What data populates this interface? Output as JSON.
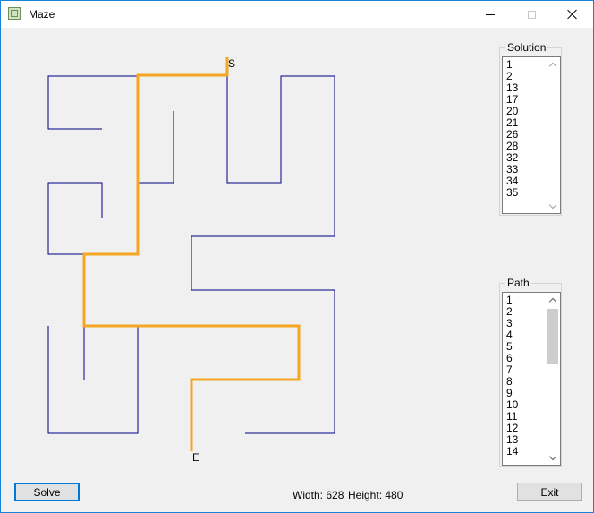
{
  "window": {
    "title": "Maze",
    "app_icon": "maze-icon",
    "controls": [
      "minimize-icon",
      "maximize-icon",
      "close-icon"
    ]
  },
  "maze": {
    "start_label": "S",
    "end_label": "E",
    "wall_color": "#000080",
    "path_color": "#f5a623"
  },
  "solution": {
    "label": "Solution",
    "items": [
      "1",
      "2",
      "13",
      "17",
      "20",
      "21",
      "26",
      "28",
      "32",
      "33",
      "34",
      "35"
    ]
  },
  "path": {
    "label": "Path",
    "items": [
      "1",
      "2",
      "3",
      "4",
      "5",
      "6",
      "7",
      "8",
      "9",
      "10",
      "11",
      "12",
      "13",
      "14"
    ]
  },
  "buttons": {
    "solve": "Solve",
    "exit": "Exit"
  },
  "status": {
    "width_text": "Width: 628",
    "height_text": "Height: 480"
  }
}
